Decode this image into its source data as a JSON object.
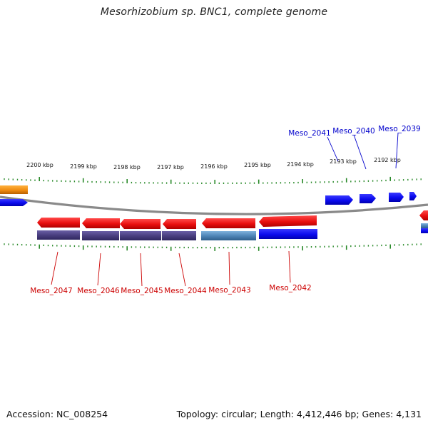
{
  "title": "Mesorhizobium sp. BNC1, complete genome",
  "footer": {
    "accession": "Accession: NC_008254",
    "stats": "Topology: circular; Length: 4,412,446 bp; Genes: 4,131"
  },
  "colors": {
    "backbone": "#8a8a8a",
    "tick": "#2a8a2a",
    "forward_gene": "#0a0aee",
    "reverse_gene": "#ee1111",
    "reverse_label": "#cc0000",
    "forward_label": "#0000cc",
    "feature_purple": "#4a3f80",
    "feature_steel": "#4f86b8",
    "feature_orange": "#f08c10"
  },
  "scale": {
    "unit": "kbp",
    "labels": [
      "2200 kbp",
      "2199 kbp",
      "2198 kbp",
      "2197 kbp",
      "2196 kbp",
      "2195 kbp",
      "2194 kbp",
      "2193 kbp",
      "2192 kbp"
    ]
  },
  "labels_top": [
    "Meso_2041",
    "Meso_2040",
    "Meso_2039"
  ],
  "labels_bottom": [
    "Meso_2047",
    "Meso_2046",
    "Meso_2045",
    "Meso_2044",
    "Meso_2043",
    "Meso_2042"
  ]
}
